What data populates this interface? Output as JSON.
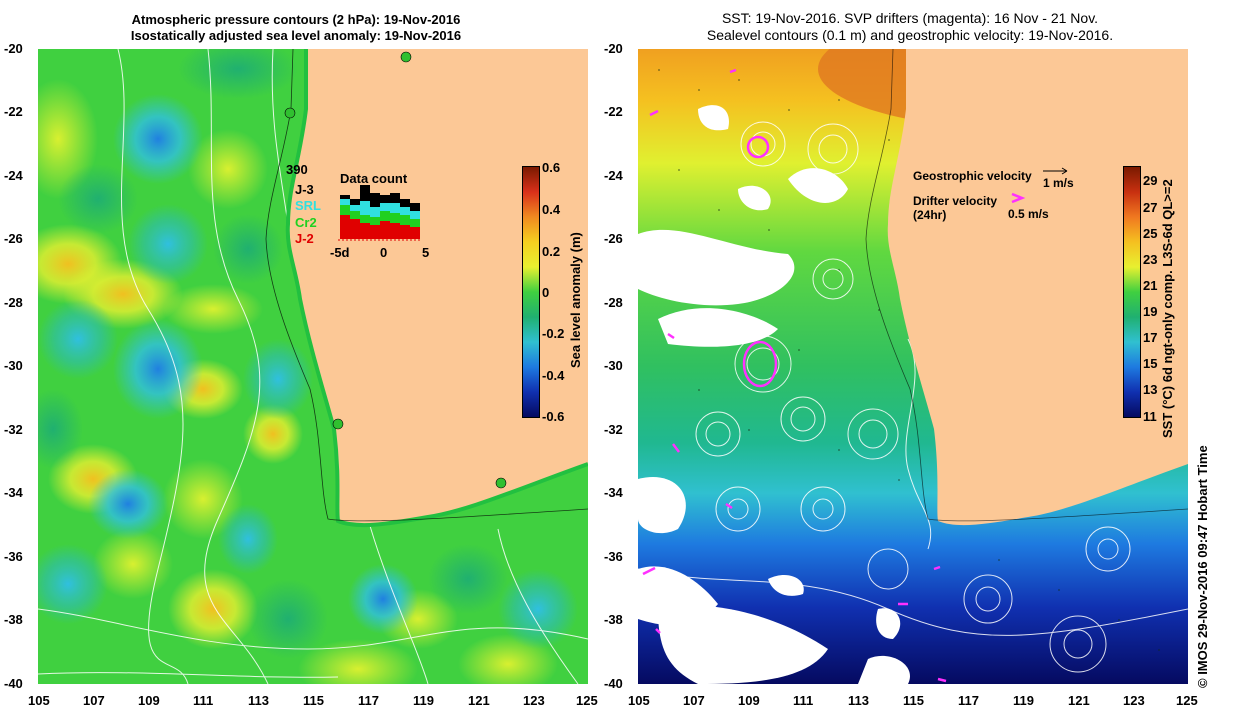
{
  "left_panel": {
    "title_line1": "Atmospheric pressure contours (2 hPa): 19-Nov-2016",
    "title_line2": "Isostatically adjusted sea level anomaly: 19-Nov-2016",
    "colorbar_label": "Sea level anomaly (m)",
    "colorbar_ticks": [
      "0.6",
      "0.4",
      "0.2",
      "0",
      "-0.2",
      "-0.4",
      "-0.6"
    ],
    "colorbar_stops": [
      "#7a1a00",
      "#d9301a",
      "#f08a20",
      "#f5d020",
      "#e8f030",
      "#40d040",
      "#20b070",
      "#30c0d0",
      "#1e7ae0",
      "#1030b0",
      "#050a60"
    ],
    "inset": {
      "title": "Data count",
      "max_count": "390",
      "satellites": [
        {
          "name": "J-3",
          "color": "#000000"
        },
        {
          "name": "SRL",
          "color": "#30e0e0"
        },
        {
          "name": "Cr2",
          "color": "#20d020"
        },
        {
          "name": "J-2",
          "color": "#e00000"
        }
      ],
      "x_ticks": [
        "-5d",
        "0",
        "5"
      ]
    }
  },
  "right_panel": {
    "title_line1": "SST: 19-Nov-2016. SVP drifters (magenta): 16 Nov - 21 Nov.",
    "title_line2": "Sealevel contours (0.1 m) and geostrophic velocity: 19-Nov-2016.",
    "colorbar_label": "SST (°C) 6d ngt-only comp. L3S-6d QL>=2",
    "colorbar_ticks": [
      "29",
      "27",
      "25",
      "23",
      "21",
      "19",
      "17",
      "15",
      "13",
      "11"
    ],
    "colorbar_stops": [
      "#7a1a00",
      "#c83010",
      "#f07820",
      "#f5c020",
      "#e8f030",
      "#40d040",
      "#20b070",
      "#30c0d0",
      "#1e7ae0",
      "#1030b0",
      "#050a60"
    ],
    "legend": {
      "geostrophic_label": "Geostrophic velocity",
      "geostrophic_scale": "1 m/s",
      "drifter_label_line1": "Drifter velocity",
      "drifter_label_line2": "(24hr)",
      "drifter_scale": "0.5 m/s"
    }
  },
  "axes": {
    "x_ticks": [
      "105",
      "107",
      "109",
      "111",
      "113",
      "115",
      "117",
      "119",
      "121",
      "123",
      "125"
    ],
    "y_ticks": [
      "-20",
      "-22",
      "-24",
      "-26",
      "-28",
      "-30",
      "-32",
      "-34",
      "-36",
      "-38",
      "-40"
    ]
  },
  "credit": "© IMOS 29-Nov-2016 09:47 Hobart Time",
  "colors": {
    "land": "#fcc896",
    "coast_shelf": "#2ad04a",
    "drifter": "#ff30ff"
  }
}
